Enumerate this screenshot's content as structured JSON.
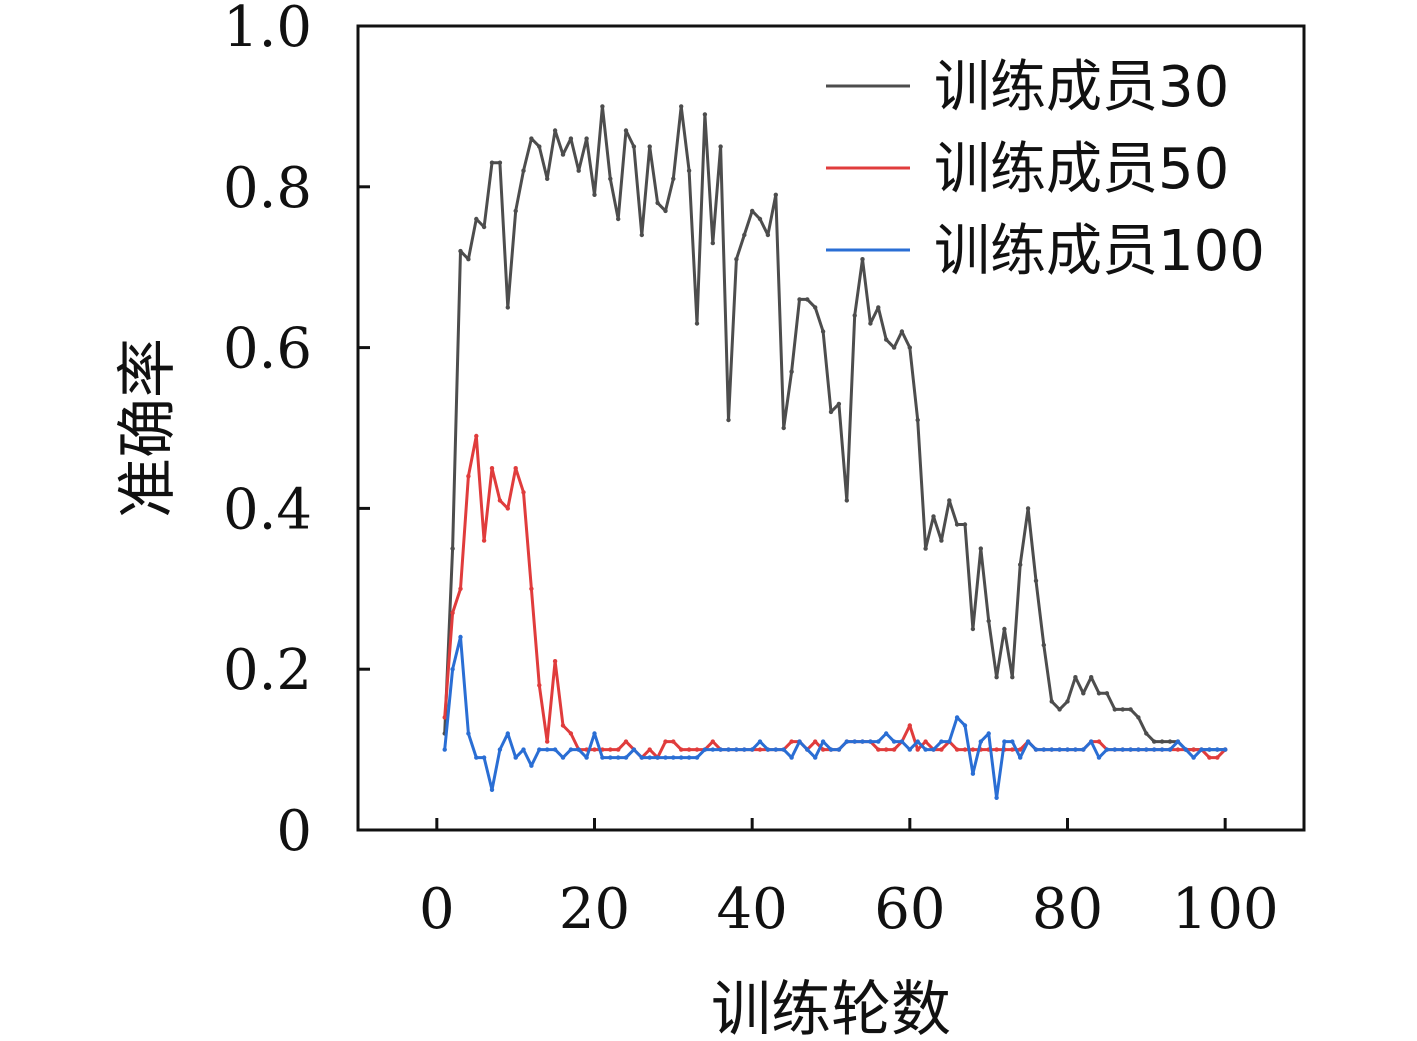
{
  "chart_data": {
    "type": "line",
    "title": "",
    "xlabel": "训练轮数",
    "ylabel": "准确率",
    "xlim": [
      -10,
      110
    ],
    "ylim": [
      0,
      1.0
    ],
    "xticks": [
      0,
      20,
      40,
      60,
      80,
      100
    ],
    "yticks": [
      0,
      0.2,
      0.4,
      0.6,
      0.8,
      1.0
    ],
    "ytick_labels": [
      "0",
      "0.2",
      "0.4",
      "0.6",
      "0.8",
      "1.0"
    ],
    "xtick_labels": [
      "0",
      "20",
      "40",
      "60",
      "80",
      "100"
    ],
    "grid": false,
    "legend_position": "top-right",
    "series": [
      {
        "name": "训练成员30",
        "color": "#4d4d4d",
        "values": [
          0.12,
          0.35,
          0.72,
          0.71,
          0.76,
          0.75,
          0.83,
          0.83,
          0.65,
          0.77,
          0.82,
          0.86,
          0.85,
          0.81,
          0.87,
          0.84,
          0.86,
          0.82,
          0.86,
          0.79,
          0.9,
          0.81,
          0.76,
          0.87,
          0.85,
          0.74,
          0.85,
          0.78,
          0.77,
          0.81,
          0.9,
          0.82,
          0.63,
          0.89,
          0.73,
          0.85,
          0.51,
          0.71,
          0.74,
          0.77,
          0.76,
          0.74,
          0.79,
          0.5,
          0.57,
          0.66,
          0.66,
          0.65,
          0.62,
          0.52,
          0.53,
          0.41,
          0.64,
          0.71,
          0.63,
          0.65,
          0.61,
          0.6,
          0.62,
          0.6,
          0.51,
          0.35,
          0.39,
          0.36,
          0.41,
          0.38,
          0.38,
          0.25,
          0.35,
          0.26,
          0.19,
          0.25,
          0.19,
          0.33,
          0.4,
          0.31,
          0.23,
          0.16,
          0.15,
          0.16,
          0.19,
          0.17,
          0.19,
          0.17,
          0.17,
          0.15,
          0.15,
          0.15,
          0.14,
          0.12,
          0.11,
          0.11,
          0.11,
          0.11,
          0.1,
          0.1,
          0.1,
          0.1,
          0.1,
          0.1
        ]
      },
      {
        "name": "训练成员50",
        "color": "#e03c3c",
        "values": [
          0.14,
          0.27,
          0.3,
          0.44,
          0.49,
          0.36,
          0.45,
          0.41,
          0.4,
          0.45,
          0.42,
          0.3,
          0.18,
          0.11,
          0.21,
          0.13,
          0.12,
          0.1,
          0.1,
          0.1,
          0.1,
          0.1,
          0.1,
          0.11,
          0.1,
          0.09,
          0.1,
          0.09,
          0.11,
          0.11,
          0.1,
          0.1,
          0.1,
          0.1,
          0.11,
          0.1,
          0.1,
          0.1,
          0.1,
          0.1,
          0.1,
          0.1,
          0.1,
          0.1,
          0.11,
          0.11,
          0.1,
          0.11,
          0.1,
          0.1,
          0.1,
          0.11,
          0.11,
          0.11,
          0.11,
          0.1,
          0.1,
          0.1,
          0.11,
          0.13,
          0.1,
          0.11,
          0.1,
          0.1,
          0.11,
          0.1,
          0.1,
          0.1,
          0.1,
          0.1,
          0.1,
          0.1,
          0.1,
          0.1,
          0.11,
          0.1,
          0.1,
          0.1,
          0.1,
          0.1,
          0.1,
          0.1,
          0.11,
          0.11,
          0.1,
          0.1,
          0.1,
          0.1,
          0.1,
          0.1,
          0.1,
          0.1,
          0.1,
          0.1,
          0.1,
          0.1,
          0.1,
          0.09,
          0.09,
          0.1
        ]
      },
      {
        "name": "训练成员100",
        "color": "#2a6ed4",
        "values": [
          0.1,
          0.2,
          0.24,
          0.12,
          0.09,
          0.09,
          0.05,
          0.1,
          0.12,
          0.09,
          0.1,
          0.08,
          0.1,
          0.1,
          0.1,
          0.09,
          0.1,
          0.1,
          0.09,
          0.12,
          0.09,
          0.09,
          0.09,
          0.09,
          0.1,
          0.09,
          0.09,
          0.09,
          0.09,
          0.09,
          0.09,
          0.09,
          0.09,
          0.1,
          0.1,
          0.1,
          0.1,
          0.1,
          0.1,
          0.1,
          0.11,
          0.1,
          0.1,
          0.1,
          0.09,
          0.11,
          0.1,
          0.09,
          0.11,
          0.1,
          0.1,
          0.11,
          0.11,
          0.11,
          0.11,
          0.11,
          0.12,
          0.11,
          0.11,
          0.1,
          0.11,
          0.1,
          0.1,
          0.11,
          0.11,
          0.14,
          0.13,
          0.07,
          0.11,
          0.12,
          0.04,
          0.11,
          0.11,
          0.09,
          0.11,
          0.1,
          0.1,
          0.1,
          0.1,
          0.1,
          0.1,
          0.1,
          0.11,
          0.09,
          0.1,
          0.1,
          0.1,
          0.1,
          0.1,
          0.1,
          0.1,
          0.1,
          0.1,
          0.11,
          0.1,
          0.09,
          0.1,
          0.1,
          0.1,
          0.1
        ]
      }
    ]
  }
}
